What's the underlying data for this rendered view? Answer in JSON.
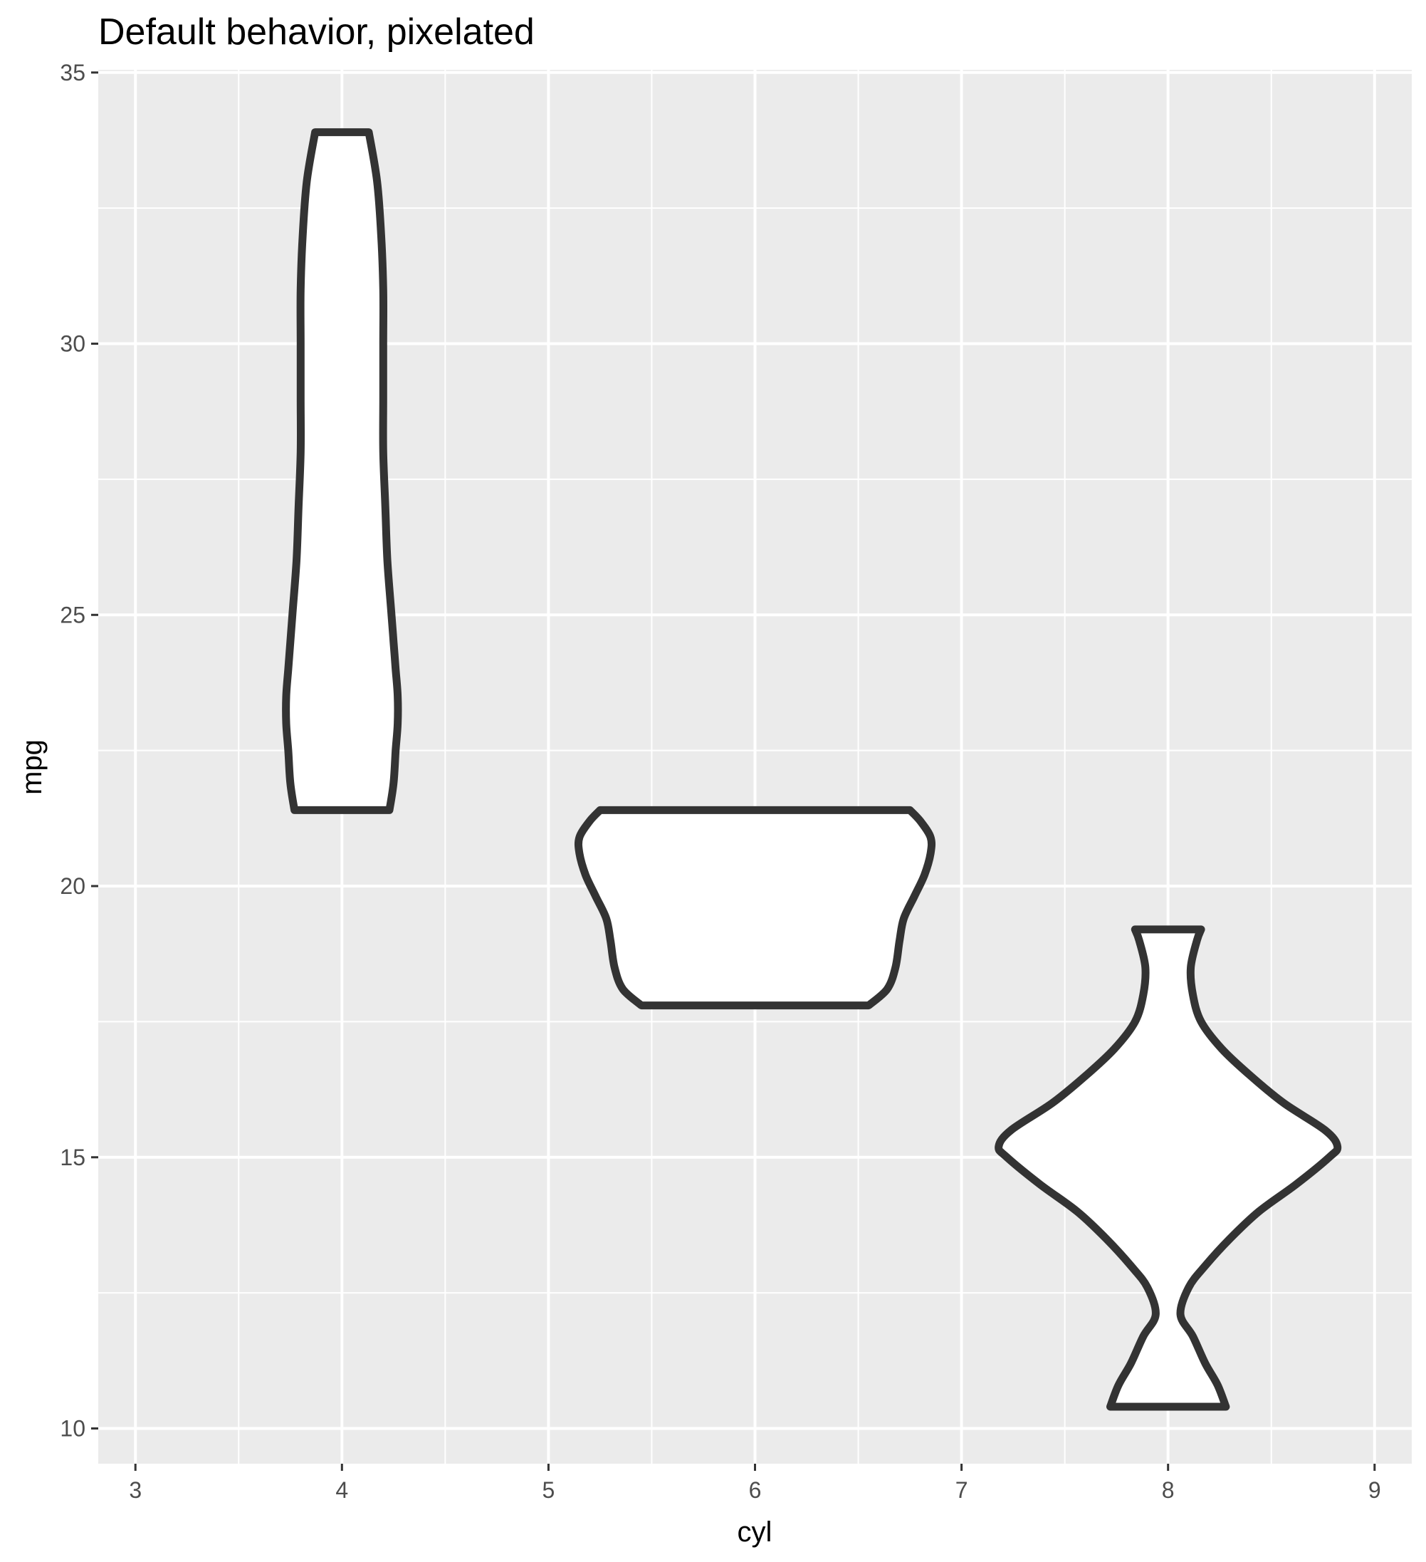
{
  "chart_data": {
    "type": "violin",
    "title": "Default behavior, pixelated",
    "xlabel": "cyl",
    "ylabel": "mpg",
    "xlim": [
      2.82,
      9.18
    ],
    "ylim": [
      9.35,
      35.05
    ],
    "x_ticks": [
      3,
      4,
      5,
      6,
      7,
      8,
      9
    ],
    "y_ticks": [
      10,
      15,
      20,
      25,
      30,
      35
    ],
    "x_tick_labels": [
      "3",
      "4",
      "5",
      "6",
      "7",
      "8",
      "9"
    ],
    "y_tick_labels": [
      "10",
      "15",
      "20",
      "25",
      "30",
      "35"
    ],
    "grid": true,
    "legend": "none",
    "colors": {
      "panel": "#ebebeb",
      "gridline": "#ffffff",
      "outline": "#333333",
      "fill": "#ffffff",
      "tick_text": "#4d4d4d"
    },
    "violins": [
      {
        "category": "4",
        "x": 4,
        "y_min": 21.4,
        "y_max": 33.9,
        "profile": [
          [
            21.4,
            0.23
          ],
          [
            21.9,
            0.25
          ],
          [
            22.5,
            0.26
          ],
          [
            23.0,
            0.27
          ],
          [
            23.5,
            0.27
          ],
          [
            24.0,
            0.26
          ],
          [
            24.5,
            0.25
          ],
          [
            25.0,
            0.24
          ],
          [
            26.0,
            0.22
          ],
          [
            27.0,
            0.21
          ],
          [
            28.0,
            0.2
          ],
          [
            29.0,
            0.2
          ],
          [
            30.0,
            0.2
          ],
          [
            31.0,
            0.2
          ],
          [
            32.0,
            0.19
          ],
          [
            33.0,
            0.17
          ],
          [
            33.9,
            0.13
          ]
        ]
      },
      {
        "category": "6",
        "x": 6,
        "y_min": 17.8,
        "y_max": 21.4,
        "profile": [
          [
            17.8,
            0.55
          ],
          [
            18.1,
            0.64
          ],
          [
            18.5,
            0.68
          ],
          [
            19.0,
            0.7
          ],
          [
            19.4,
            0.72
          ],
          [
            19.8,
            0.77
          ],
          [
            20.2,
            0.82
          ],
          [
            20.6,
            0.85
          ],
          [
            20.9,
            0.85
          ],
          [
            21.2,
            0.8
          ],
          [
            21.4,
            0.75
          ]
        ]
      },
      {
        "category": "8",
        "x": 8,
        "y_min": 10.4,
        "y_max": 19.2,
        "profile": [
          [
            10.4,
            0.28
          ],
          [
            10.8,
            0.24
          ],
          [
            11.2,
            0.18
          ],
          [
            11.7,
            0.12
          ],
          [
            12.1,
            0.06
          ],
          [
            12.6,
            0.1
          ],
          [
            13.0,
            0.18
          ],
          [
            13.5,
            0.3
          ],
          [
            14.0,
            0.44
          ],
          [
            14.5,
            0.62
          ],
          [
            15.0,
            0.78
          ],
          [
            15.2,
            0.82
          ],
          [
            15.5,
            0.76
          ],
          [
            16.0,
            0.56
          ],
          [
            16.5,
            0.4
          ],
          [
            17.0,
            0.26
          ],
          [
            17.5,
            0.16
          ],
          [
            18.0,
            0.12
          ],
          [
            18.5,
            0.11
          ],
          [
            19.0,
            0.14
          ],
          [
            19.2,
            0.16
          ]
        ]
      }
    ]
  }
}
